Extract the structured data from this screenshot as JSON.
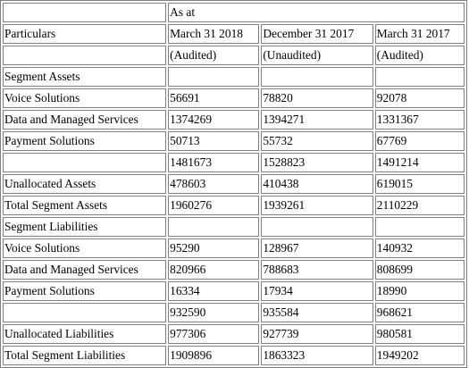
{
  "header": {
    "as_at": "As at",
    "particulars": "Particulars",
    "periods": [
      "March 31 2018",
      "December 31 2017",
      "March 31 2017"
    ],
    "audit_status": [
      "(Audited)",
      "(Unaudited)",
      "(Audited)"
    ]
  },
  "rows": [
    {
      "label": "Segment Assets",
      "values": [
        "",
        "",
        ""
      ]
    },
    {
      "label": "Voice Solutions",
      "values": [
        "56691",
        "78820",
        "92078"
      ]
    },
    {
      "label": "Data and Managed Services",
      "values": [
        "1374269",
        "1394271",
        "1331367"
      ]
    },
    {
      "label": "Payment Solutions",
      "values": [
        "50713",
        "55732",
        "67769"
      ]
    },
    {
      "label": "",
      "values": [
        "1481673",
        "1528823",
        "1491214"
      ]
    },
    {
      "label": "Unallocated Assets",
      "values": [
        "478603",
        "410438",
        "619015"
      ]
    },
    {
      "label": "Total Segment Assets",
      "values": [
        "1960276",
        "1939261",
        "2110229"
      ]
    },
    {
      "label": "Segment Liabilities",
      "values": [
        "",
        "",
        ""
      ]
    },
    {
      "label": "Voice Solutions",
      "values": [
        "95290",
        "128967",
        "140932"
      ]
    },
    {
      "label": "Data and Managed Services",
      "values": [
        "820966",
        "788683",
        "808699"
      ]
    },
    {
      "label": "Payment Solutions",
      "values": [
        "16334",
        "17934",
        "18990"
      ]
    },
    {
      "label": "",
      "values": [
        "932590",
        "935584",
        "968621"
      ]
    },
    {
      "label": "Unallocated Liabilities",
      "values": [
        "977306",
        "927739",
        "980581"
      ]
    },
    {
      "label": "Total Segment Liabilities",
      "values": [
        "1909896",
        "1863323",
        "1949202"
      ]
    }
  ]
}
